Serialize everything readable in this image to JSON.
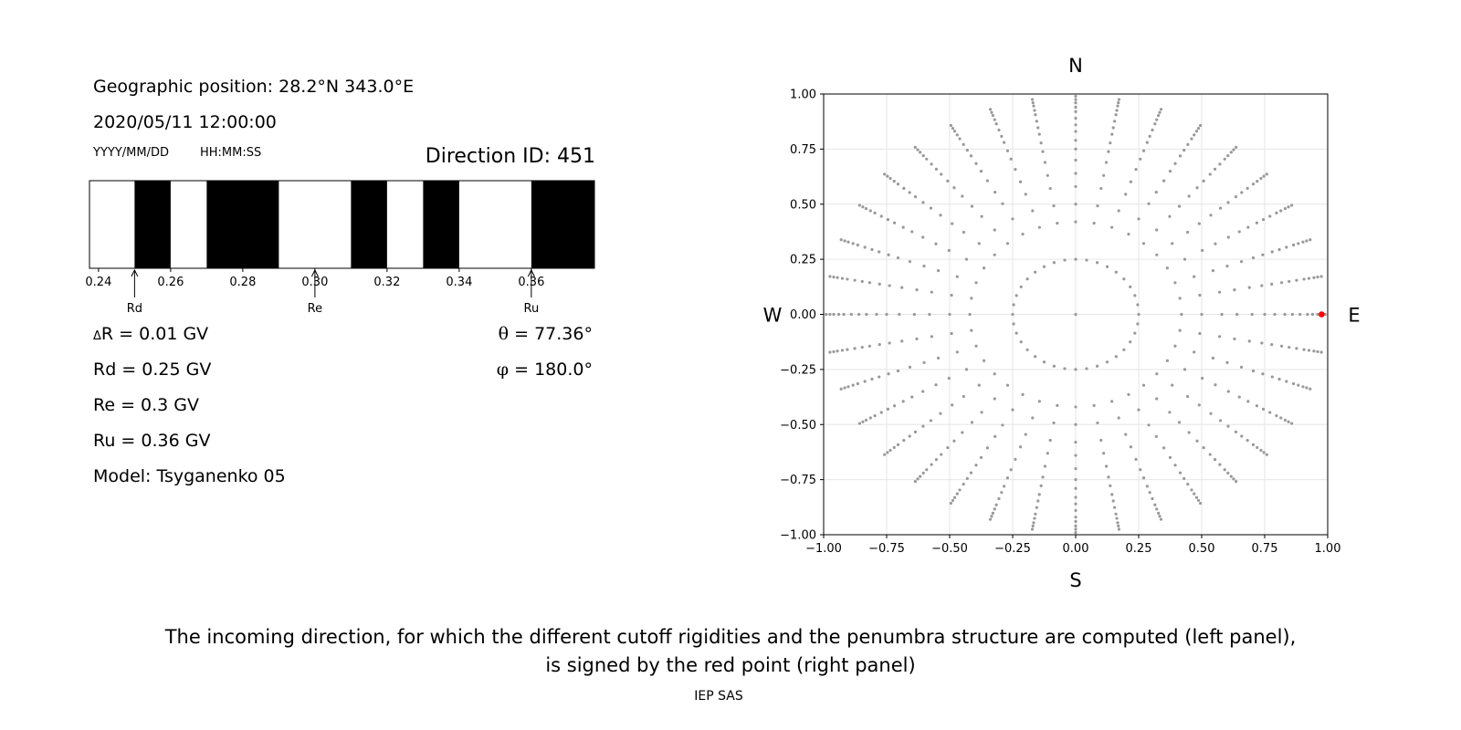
{
  "info": {
    "geo_position": "Geographic position: 28.2°N 343.0°E",
    "datetime": "2020/05/11 12:00:00",
    "date_format": "YYYY/MM/DD",
    "time_format": "HH:MM:SS",
    "direction_id": "Direction ID: 451"
  },
  "params": {
    "delta_r_symbol": "Δ",
    "delta_r": "R = 0.01 GV",
    "rd": "Rd = 0.25 GV",
    "re": "Re = 0.3 GV",
    "ru": "Ru = 0.36 GV",
    "model": "Model: Tsyganenko 05",
    "theta_symbol": "θ",
    "theta": " = 77.36°",
    "phi_symbol": "φ",
    "phi": " = 180.0°"
  },
  "caption": {
    "line1": "The incoming direction, for which the different cutoff rigidities and the penumbra structure are computed (left panel),",
    "line2": "is signed by the red point (right panel)",
    "footer": "IEP SAS"
  },
  "chart_data": [
    {
      "type": "bar",
      "name": "penumbra",
      "xlim": [
        0.2375,
        0.3775
      ],
      "xticks": [
        0.24,
        0.26,
        0.28,
        0.3,
        0.32,
        0.34,
        0.36
      ],
      "xtick_labels": [
        "0.24",
        "0.26",
        "0.28",
        "0.30",
        "0.32",
        "0.34",
        "0.36"
      ],
      "allowed_color": "#ffffff",
      "forbidden_color": "#000000",
      "forbidden_bands": [
        [
          0.25,
          0.26
        ],
        [
          0.27,
          0.29
        ],
        [
          0.31,
          0.32
        ],
        [
          0.33,
          0.34
        ],
        [
          0.36,
          0.3775
        ]
      ],
      "markers": [
        {
          "label": "Rd",
          "x": 0.25
        },
        {
          "label": "Re",
          "x": 0.3
        },
        {
          "label": "Ru",
          "x": 0.36
        }
      ]
    },
    {
      "type": "scatter",
      "name": "directions",
      "xlim": [
        -1.0,
        1.0
      ],
      "ylim": [
        -1.0,
        1.0
      ],
      "xticks": [
        -1.0,
        -0.75,
        -0.5,
        -0.25,
        0.0,
        0.25,
        0.5,
        0.75,
        1.0
      ],
      "yticks": [
        -1.0,
        -0.75,
        -0.5,
        -0.25,
        0.0,
        0.25,
        0.5,
        0.75,
        1.0
      ],
      "xtick_labels": [
        "−1.00",
        "−0.75",
        "−0.50",
        "−0.25",
        "0.00",
        "0.25",
        "0.50",
        "0.75",
        "1.00"
      ],
      "ytick_labels": [
        "−1.00",
        "−0.75",
        "−0.50",
        "−0.25",
        "0.00",
        "0.25",
        "0.50",
        "0.75",
        "1.00"
      ],
      "grid": true,
      "compass": {
        "north": "N",
        "south": "S",
        "west": "W",
        "east": "E"
      },
      "point_color": "#999999",
      "highlight_color": "#ff0000",
      "highlight_point": {
        "x": 0.976,
        "y": 0.0
      },
      "ring_radii": [
        0.25,
        0.42,
        0.5,
        0.58,
        0.64,
        0.7,
        0.75,
        0.79,
        0.83,
        0.86,
        0.89,
        0.92,
        0.94,
        0.96,
        0.975,
        0.99
      ],
      "spoke_angles_deg": [
        0,
        10,
        20,
        30,
        40,
        50,
        60,
        70,
        80,
        90,
        100,
        110,
        120,
        130,
        140,
        150,
        160,
        170,
        180,
        190,
        200,
        210,
        220,
        230,
        240,
        250,
        260,
        270,
        280,
        290,
        300,
        310,
        320,
        330,
        340,
        350
      ],
      "inner_ring": {
        "radius": 0.25,
        "count": 36
      }
    }
  ]
}
